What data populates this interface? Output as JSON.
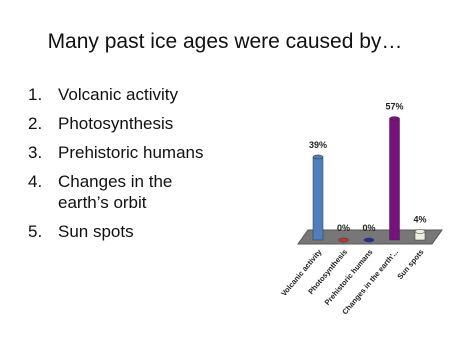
{
  "title": "Many past ice ages were caused by…",
  "list": [
    {
      "number": "1.",
      "text": "Volcanic activity"
    },
    {
      "number": "2.",
      "text": "Photosynthesis"
    },
    {
      "number": "3.",
      "text": "Prehistoric humans"
    },
    {
      "number": "4.",
      "text": "Changes in the earth’s orbit"
    },
    {
      "number": "5.",
      "text": "Sun spots"
    }
  ],
  "chart_data": {
    "type": "bar",
    "categories": [
      "Volcanic activity",
      "Photosynthesis",
      "Prehistoric humans",
      "Changes in the earth'...",
      "Sun spots"
    ],
    "values": [
      39,
      0,
      0,
      57,
      4
    ],
    "value_labels": [
      "39%",
      "0%",
      "0%",
      "57%",
      "4%"
    ],
    "colors": [
      "#4f7fbf",
      "#c0392b",
      "#1f2fa0",
      "#7a0f80",
      "#eeeedd"
    ]
  }
}
